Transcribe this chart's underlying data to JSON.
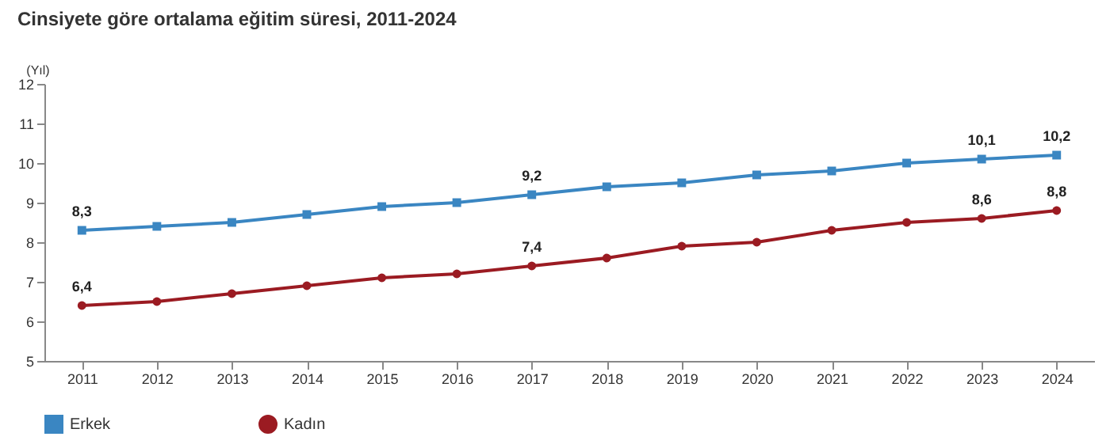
{
  "chart_data": {
    "type": "line",
    "title": "Cinsiyete göre ortalama eğitim süresi, 2011-2024",
    "ylabel": "(Yıl)",
    "categories": [
      "2011",
      "2012",
      "2013",
      "2014",
      "2015",
      "2016",
      "2017",
      "2018",
      "2019",
      "2020",
      "2021",
      "2022",
      "2023",
      "2024"
    ],
    "series": [
      {
        "name": "Erkek",
        "color": "#3a86c2",
        "marker": "square",
        "values": [
          8.3,
          8.4,
          8.5,
          8.7,
          8.9,
          9.0,
          9.2,
          9.4,
          9.5,
          9.7,
          9.8,
          10.0,
          10.1,
          10.2
        ],
        "value_labels": [
          "8,3",
          null,
          null,
          null,
          null,
          null,
          "9,2",
          null,
          null,
          null,
          null,
          null,
          "10,1",
          "10,2"
        ]
      },
      {
        "name": "Kadın",
        "color": "#9b1b22",
        "marker": "circle",
        "values": [
          6.4,
          6.5,
          6.7,
          6.9,
          7.1,
          7.2,
          7.4,
          7.6,
          7.9,
          8.0,
          8.3,
          8.5,
          8.6,
          8.8
        ],
        "value_labels": [
          "6,4",
          null,
          null,
          null,
          null,
          null,
          "7,4",
          null,
          null,
          null,
          null,
          null,
          "8,6",
          "8,8"
        ]
      }
    ],
    "ylim": [
      5,
      12
    ],
    "yticks": [
      5,
      6,
      7,
      8,
      9,
      10,
      11,
      12
    ],
    "grid": false,
    "legend": "bottom",
    "line_style": "solid"
  }
}
